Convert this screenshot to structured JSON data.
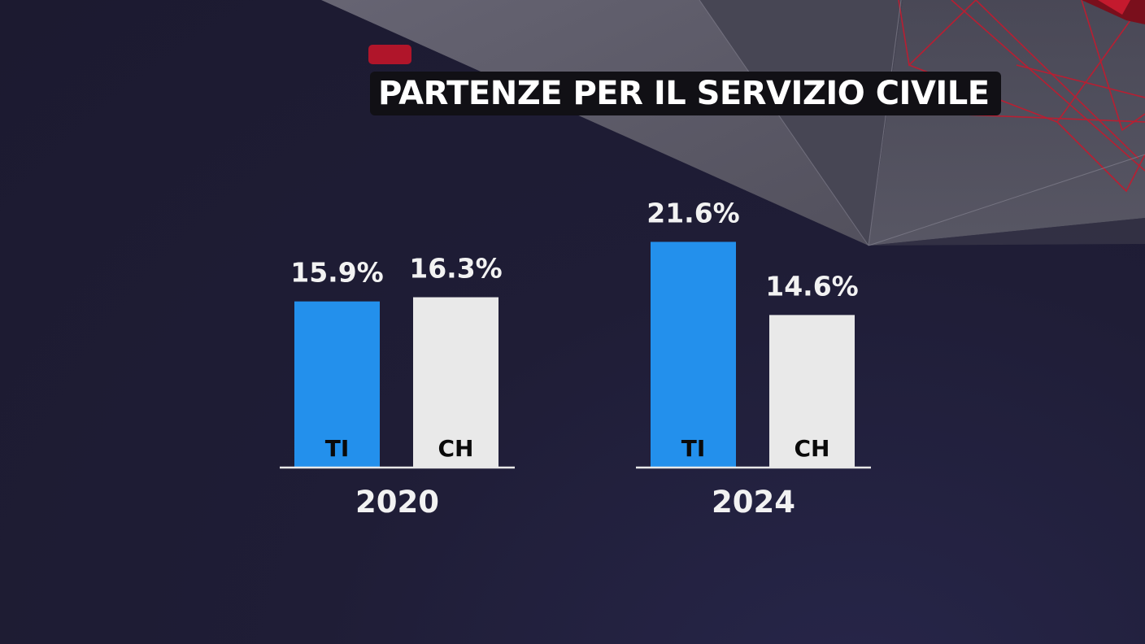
{
  "title": "PARTENZE PER IL SERVIZIO CIVILE",
  "colors": {
    "ti": "#2390ec",
    "ch": "#e9e9e9",
    "accent": "#b0152a",
    "background": "#1f1d33"
  },
  "chart_data": {
    "type": "bar",
    "title": "PARTENZE PER IL SERVIZIO CIVILE",
    "categories": [
      "2020",
      "2024"
    ],
    "series": [
      {
        "name": "TI",
        "values": [
          15.9,
          21.6
        ],
        "labels": [
          "15.9%",
          "21.6%"
        ]
      },
      {
        "name": "CH",
        "values": [
          16.3,
          14.6
        ],
        "labels": [
          "16.3%",
          "14.6%"
        ]
      }
    ],
    "unit": "%",
    "grid": false,
    "legend": "none"
  }
}
